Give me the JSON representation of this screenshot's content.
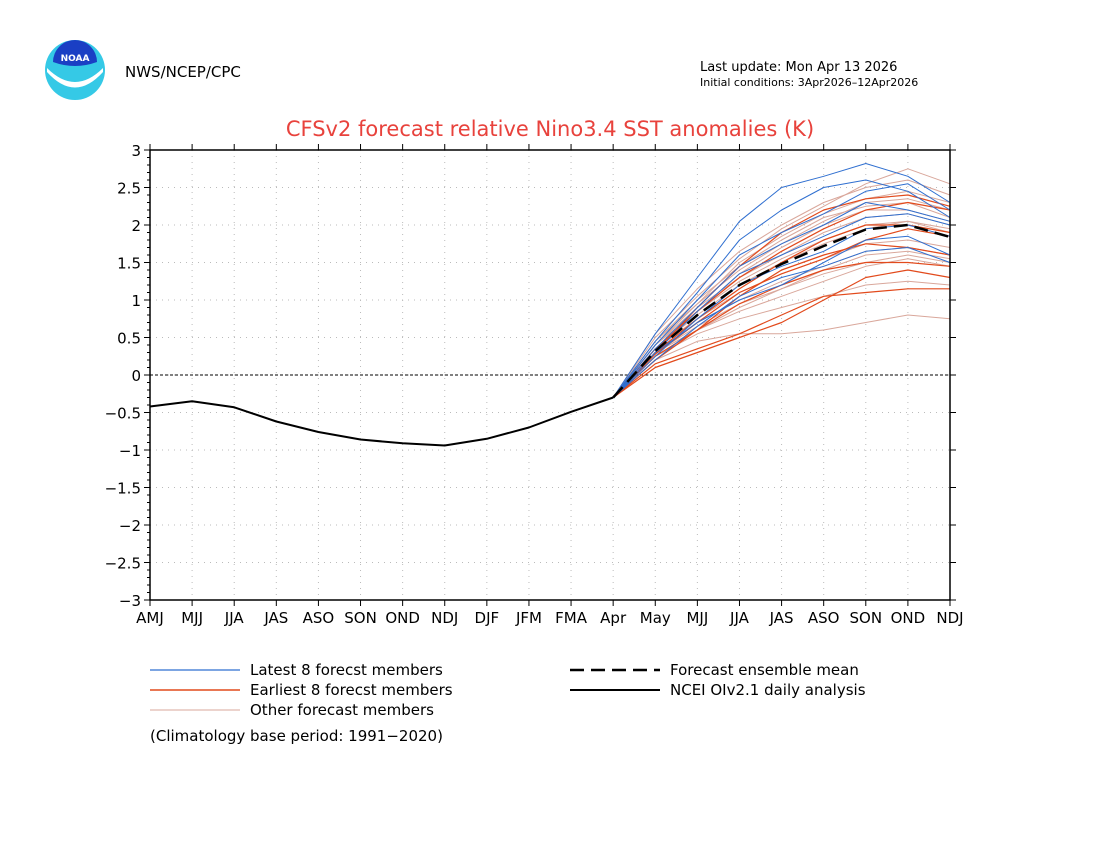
{
  "header": {
    "logo_text": "NOAA",
    "agency": "NWS/NCEP/CPC",
    "last_update": "Last update: Mon Apr 13 2026",
    "initial_conditions": "Initial conditions: 3Apr2026–12Apr2026"
  },
  "colors": {
    "title": "#e8423c",
    "latest": "#2f6fd0",
    "earliest": "#e24a1c",
    "other": "#d9a79b",
    "mean": "#000000",
    "observed": "#000000",
    "grid": "#bbbbbb",
    "logo_ring": "#35c9e6",
    "logo_center": "#1a3fc4"
  },
  "chart_data": {
    "type": "line",
    "title": "CFSv2 forecast relative Nino3.4 SST anomalies (K)",
    "categories": [
      "AMJ",
      "MJJ",
      "JJA",
      "JAS",
      "ASO",
      "SON",
      "OND",
      "NDJ",
      "DJF",
      "JFM",
      "FMA",
      "Apr",
      "May",
      "MJJ",
      "JJA",
      "JAS",
      "ASO",
      "SON",
      "OND",
      "NDJ"
    ],
    "ylim": [
      -3,
      3
    ],
    "yticks": [
      -3,
      -2.5,
      -2,
      -1.5,
      -1,
      -0.5,
      0,
      0.5,
      1,
      1.5,
      2,
      2.5,
      3
    ],
    "ytick_labels": [
      "−3",
      "−2.5",
      "−2",
      "−1.5",
      "−1",
      "−0.5",
      "0",
      "0.5",
      "1",
      "1.5",
      "2",
      "2.5",
      "3"
    ],
    "zero_line": true,
    "grid": true,
    "observed": {
      "name": "NCEI OIv2.1 daily analysis",
      "values": [
        -0.42,
        -0.35,
        -0.43,
        -0.62,
        -0.76,
        -0.86,
        -0.91,
        -0.94,
        -0.85,
        -0.7,
        -0.49,
        -0.3
      ]
    },
    "mean": {
      "name": "Forecast ensemble mean",
      "values": [
        -0.3,
        0.32,
        0.8,
        1.2,
        1.48,
        1.72,
        1.94,
        2.0,
        1.84
      ]
    },
    "latest": {
      "name": "Latest 8 forecst members",
      "members": [
        [
          -0.3,
          0.55,
          1.3,
          2.05,
          2.5,
          2.65,
          2.82,
          2.65,
          2.3
        ],
        [
          -0.3,
          0.45,
          1.1,
          1.8,
          2.2,
          2.5,
          2.6,
          2.45,
          2.1
        ],
        [
          -0.3,
          0.4,
          1.0,
          1.6,
          1.9,
          2.15,
          2.45,
          2.55,
          2.2
        ],
        [
          -0.3,
          0.35,
          0.9,
          1.45,
          1.75,
          2.0,
          2.3,
          2.2,
          2.05
        ],
        [
          -0.3,
          0.3,
          0.85,
          1.35,
          1.6,
          1.85,
          2.1,
          2.15,
          2.0
        ],
        [
          -0.3,
          0.25,
          0.75,
          1.2,
          1.45,
          1.65,
          1.95,
          2.0,
          1.85
        ],
        [
          -0.3,
          0.2,
          0.65,
          1.05,
          1.3,
          1.45,
          1.65,
          1.7,
          1.5
        ],
        [
          -0.3,
          0.3,
          0.7,
          1.0,
          1.2,
          1.5,
          1.8,
          1.85,
          1.6
        ]
      ]
    },
    "earliest": {
      "name": "Earliest 8 forecst members",
      "members": [
        [
          -0.3,
          0.15,
          0.35,
          0.55,
          0.8,
          1.05,
          1.1,
          1.15,
          1.15
        ],
        [
          -0.3,
          0.25,
          0.6,
          0.95,
          1.2,
          1.4,
          1.5,
          1.5,
          1.45
        ],
        [
          -0.3,
          0.3,
          0.75,
          1.15,
          1.5,
          1.8,
          2.0,
          2.0,
          1.9
        ],
        [
          -0.3,
          0.35,
          0.85,
          1.3,
          1.65,
          1.95,
          2.2,
          2.3,
          2.2
        ],
        [
          -0.3,
          0.3,
          0.9,
          1.45,
          1.9,
          2.2,
          2.35,
          2.4,
          2.25
        ],
        [
          -0.3,
          0.2,
          0.6,
          1.05,
          1.4,
          1.6,
          1.75,
          1.7,
          1.6
        ],
        [
          -0.3,
          0.1,
          0.3,
          0.5,
          0.7,
          1.0,
          1.3,
          1.4,
          1.3
        ],
        [
          -0.3,
          0.28,
          0.7,
          1.1,
          1.35,
          1.55,
          1.8,
          1.95,
          1.85
        ]
      ]
    },
    "other": {
      "name": "Other forecast members",
      "members": [
        [
          -0.3,
          0.2,
          0.45,
          0.55,
          0.55,
          0.6,
          0.7,
          0.8,
          0.75
        ],
        [
          -0.3,
          0.25,
          0.55,
          0.75,
          0.9,
          1.05,
          1.2,
          1.25,
          1.2
        ],
        [
          -0.3,
          0.3,
          0.65,
          0.95,
          1.15,
          1.35,
          1.5,
          1.6,
          1.5
        ],
        [
          -0.3,
          0.35,
          0.75,
          1.1,
          1.35,
          1.55,
          1.75,
          1.8,
          1.7
        ],
        [
          -0.3,
          0.4,
          0.85,
          1.25,
          1.55,
          1.8,
          2.0,
          2.05,
          1.95
        ],
        [
          -0.3,
          0.45,
          0.95,
          1.4,
          1.75,
          2.05,
          2.3,
          2.35,
          2.2
        ],
        [
          -0.3,
          0.5,
          1.05,
          1.55,
          1.95,
          2.25,
          2.55,
          2.75,
          2.55
        ],
        [
          -0.3,
          0.4,
          0.95,
          1.5,
          1.85,
          2.15,
          2.35,
          2.45,
          2.3
        ],
        [
          -0.3,
          0.3,
          0.7,
          1.0,
          1.25,
          1.45,
          1.65,
          1.7,
          1.6
        ],
        [
          -0.3,
          0.35,
          0.8,
          1.2,
          1.5,
          1.75,
          1.95,
          2.05,
          1.9
        ],
        [
          -0.3,
          0.3,
          0.6,
          0.85,
          1.05,
          1.25,
          1.45,
          1.55,
          1.45
        ],
        [
          -0.3,
          0.45,
          1.0,
          1.45,
          1.8,
          2.1,
          2.25,
          2.3,
          2.1
        ],
        [
          -0.3,
          0.25,
          0.6,
          0.9,
          1.15,
          1.4,
          1.6,
          1.65,
          1.55
        ],
        [
          -0.3,
          0.55,
          1.15,
          1.65,
          2.0,
          2.3,
          2.5,
          2.6,
          2.4
        ],
        [
          -0.3,
          0.35,
          0.85,
          1.35,
          1.7,
          2.0,
          2.2,
          2.2,
          2.05
        ],
        [
          -0.3,
          0.4,
          0.9,
          1.3,
          1.6,
          1.9,
          2.1,
          2.15,
          2.0
        ]
      ]
    },
    "legend": {
      "position": "bottom",
      "note": "(Climatology base period: 1991−2020)"
    }
  }
}
